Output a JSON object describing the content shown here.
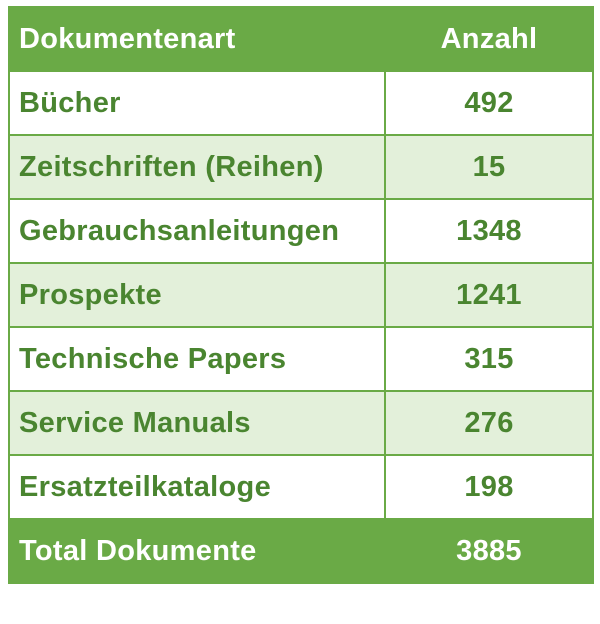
{
  "table": {
    "header": {
      "type_label": "Dokumentenart",
      "count_label": "Anzahl"
    },
    "rows": [
      {
        "type": "Bücher",
        "count": "492"
      },
      {
        "type": "Zeitschriften (Reihen)",
        "count": "15"
      },
      {
        "type": "Gebrauchsanleitungen",
        "count": "1348"
      },
      {
        "type": "Prospekte",
        "count": "1241"
      },
      {
        "type": "Technische Papers",
        "count": "315"
      },
      {
        "type": "Service Manuals",
        "count": "276"
      },
      {
        "type": "Ersatzteilkataloge",
        "count": "198"
      }
    ],
    "total": {
      "label": "Total Dokumente",
      "count": "3885"
    }
  },
  "colors": {
    "accent": "#6aaa46",
    "text_green": "#4a8530",
    "stripe": "#e3f0da"
  }
}
